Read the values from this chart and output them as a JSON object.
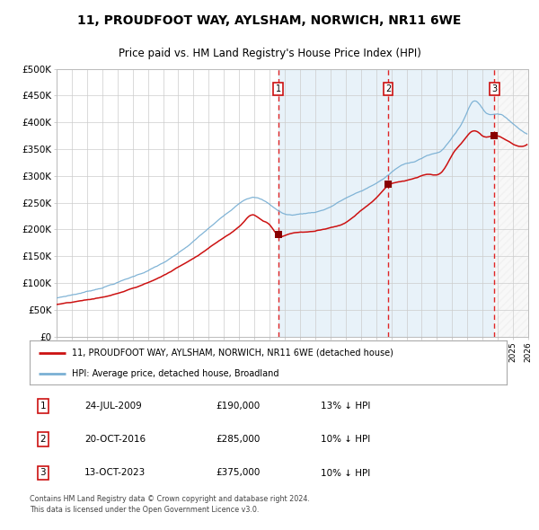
{
  "title1": "11, PROUDFOOT WAY, AYLSHAM, NORWICH, NR11 6WE",
  "title2": "Price paid vs. HM Land Registry's House Price Index (HPI)",
  "legend_house": "11, PROUDFOOT WAY, AYLSHAM, NORWICH, NR11 6WE (detached house)",
  "legend_hpi": "HPI: Average price, detached house, Broadland",
  "sale1_date": "24-JUL-2009",
  "sale1_price": 190000,
  "sale1_label": "13% ↓ HPI",
  "sale2_date": "20-OCT-2016",
  "sale2_price": 285000,
  "sale2_label": "10% ↓ HPI",
  "sale3_date": "13-OCT-2023",
  "sale3_price": 375000,
  "sale3_label": "10% ↓ HPI",
  "sale1_x": 2009.56,
  "sale2_x": 2016.8,
  "sale3_x": 2023.78,
  "xmin": 1995.0,
  "xmax": 2026.0,
  "ymin": 0,
  "ymax": 500000,
  "hpi_color": "#7ab0d4",
  "house_color": "#cc1111",
  "marker_color": "#880000",
  "vline_color": "#dd0000",
  "shade_color": "#daeaf5",
  "grid_color": "#cccccc",
  "footer": "Contains HM Land Registry data © Crown copyright and database right 2024.\nThis data is licensed under the Open Government Licence v3.0.",
  "ytick_labels": [
    "£0",
    "£50K",
    "£100K",
    "£150K",
    "£200K",
    "£250K",
    "£300K",
    "£350K",
    "£400K",
    "£450K",
    "£500K"
  ],
  "ytick_values": [
    0,
    50000,
    100000,
    150000,
    200000,
    250000,
    300000,
    350000,
    400000,
    450000,
    500000
  ]
}
